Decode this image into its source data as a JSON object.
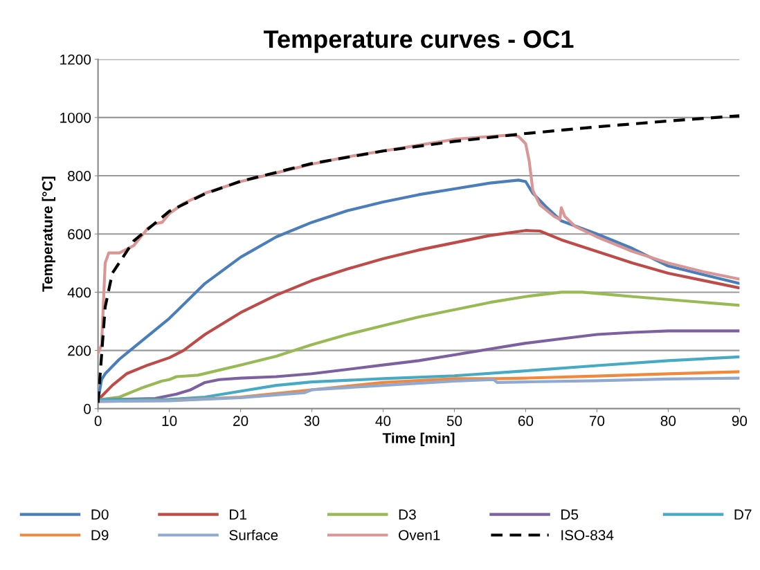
{
  "chart_data": {
    "type": "line",
    "title": "Temperature curves - OC1",
    "xlabel": "Time [min]",
    "ylabel": "Temperature [°C]",
    "xlim": [
      0,
      90
    ],
    "xticks": [
      0,
      10,
      20,
      30,
      40,
      50,
      60,
      70,
      80,
      90
    ],
    "ylim": [
      0,
      1200
    ],
    "yticks": [
      0,
      200,
      400,
      600,
      800,
      1000,
      1200
    ],
    "grid": "y",
    "legend": "bottom",
    "marker": "none",
    "line_style": "solid",
    "series": [
      {
        "name": "D0",
        "color": "#4a7ebb",
        "x": [
          0,
          0.5,
          1,
          3,
          5,
          10,
          15,
          20,
          25,
          30,
          35,
          40,
          45,
          50,
          55,
          59,
          60,
          61,
          63,
          65,
          70,
          75,
          80,
          85,
          90
        ],
        "values": [
          30,
          100,
          120,
          170,
          210,
          310,
          430,
          520,
          590,
          640,
          680,
          710,
          735,
          755,
          775,
          785,
          780,
          740,
          690,
          645,
          600,
          550,
          490,
          460,
          430
        ]
      },
      {
        "name": "D1",
        "color": "#be4b48",
        "x": [
          0,
          2,
          4,
          7,
          10,
          12,
          15,
          20,
          25,
          30,
          35,
          40,
          45,
          50,
          55,
          60,
          62,
          65,
          70,
          75,
          80,
          85,
          90
        ],
        "values": [
          30,
          80,
          120,
          150,
          175,
          200,
          255,
          330,
          390,
          440,
          480,
          515,
          545,
          570,
          595,
          612,
          610,
          580,
          540,
          500,
          465,
          440,
          415
        ]
      },
      {
        "name": "D3",
        "color": "#98b954",
        "x": [
          0,
          3,
          6,
          9,
          10,
          11,
          14,
          20,
          25,
          30,
          35,
          40,
          45,
          50,
          55,
          60,
          65,
          68,
          75,
          80,
          90
        ],
        "values": [
          30,
          40,
          70,
          95,
          100,
          110,
          115,
          150,
          180,
          220,
          255,
          285,
          315,
          340,
          365,
          385,
          400,
          400,
          385,
          375,
          355
        ]
      },
      {
        "name": "D5",
        "color": "#7d60a0",
        "x": [
          0,
          8,
          11,
          13,
          15,
          17,
          20,
          25,
          30,
          35,
          40,
          45,
          50,
          55,
          60,
          65,
          70,
          75,
          80,
          90
        ],
        "values": [
          30,
          35,
          50,
          65,
          90,
          100,
          105,
          110,
          120,
          135,
          150,
          165,
          185,
          205,
          225,
          240,
          255,
          262,
          267,
          267
        ]
      },
      {
        "name": "D7",
        "color": "#46aac5",
        "x": [
          0,
          10,
          15,
          20,
          25,
          30,
          40,
          50,
          60,
          70,
          80,
          90
        ],
        "values": [
          30,
          32,
          40,
          60,
          80,
          92,
          103,
          113,
          130,
          148,
          165,
          178
        ]
      },
      {
        "name": "D9",
        "color": "#f0883e",
        "x": [
          0,
          10,
          20,
          30,
          40,
          50,
          56,
          60,
          70,
          80,
          90
        ],
        "values": [
          25,
          28,
          40,
          65,
          90,
          103,
          103,
          105,
          112,
          120,
          127
        ]
      },
      {
        "name": "Surface",
        "color": "#8fa9d1",
        "x": [
          0,
          10,
          20,
          29,
          30,
          40,
          50,
          55.5,
          56,
          60,
          70,
          80,
          90
        ],
        "values": [
          25,
          27,
          38,
          55,
          65,
          80,
          95,
          100,
          90,
          92,
          96,
          102,
          105
        ]
      },
      {
        "name": "Oven1",
        "color": "#d99694",
        "x": [
          0,
          0.5,
          1,
          1.5,
          3,
          5,
          6,
          7,
          8,
          9,
          10,
          12,
          15,
          20,
          25,
          30,
          35,
          40,
          45,
          50,
          55,
          58,
          59,
          60,
          60.5,
          61,
          62,
          64,
          64.8,
          65,
          65.5,
          67,
          70,
          75,
          80,
          85,
          90
        ],
        "values": [
          190,
          220,
          500,
          535,
          535,
          560,
          590,
          620,
          635,
          640,
          670,
          705,
          740,
          780,
          810,
          840,
          865,
          885,
          905,
          925,
          935,
          940,
          935,
          910,
          850,
          750,
          700,
          660,
          650,
          690,
          660,
          625,
          590,
          540,
          500,
          470,
          445
        ]
      },
      {
        "name": "ISO-834",
        "color": "#000000",
        "line_style": "dashed",
        "x": [
          0,
          1,
          2,
          3,
          5,
          10,
          15,
          20,
          30,
          40,
          50,
          60,
          70,
          80,
          90
        ],
        "values": [
          20,
          349,
          465,
          502,
          576,
          678,
          738,
          781,
          842,
          885,
          918,
          945,
          968,
          988,
          1006
        ]
      }
    ]
  }
}
